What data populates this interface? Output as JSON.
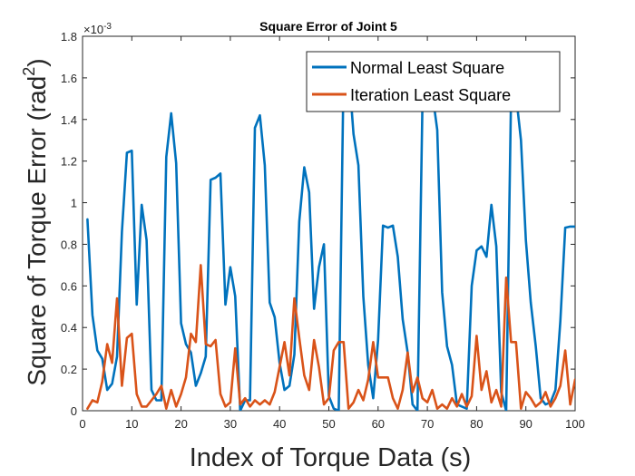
{
  "chart_data": {
    "type": "line",
    "title": "Square Error of Joint 5",
    "xlabel": "Index of Torque Data  (s)",
    "ylabel_main": "Square of Torque Error (rad",
    "ylabel_sup": "2",
    "ylabel_close": ")",
    "exponent_base": "×10",
    "exponent_power": "-3",
    "xlim": [
      0,
      100
    ],
    "ylim": [
      0,
      1.8
    ],
    "xticks": [
      0,
      10,
      20,
      30,
      40,
      50,
      60,
      70,
      80,
      90,
      100
    ],
    "yticks": [
      0,
      0.2,
      0.4,
      0.6,
      0.8,
      1,
      1.2,
      1.4,
      1.6,
      1.8
    ],
    "legend_position": "top-right",
    "series": [
      {
        "name": "Normal Least Square",
        "color": "#0072BD",
        "x": [
          1,
          2,
          3,
          4,
          5,
          6,
          7,
          8,
          9,
          10,
          11,
          12,
          13,
          14,
          15,
          16,
          17,
          18,
          19,
          20,
          21,
          22,
          23,
          24,
          25,
          26,
          27,
          28,
          29,
          30,
          31,
          32,
          33,
          34,
          35,
          36,
          37,
          38,
          39,
          40,
          41,
          42,
          43,
          44,
          45,
          46,
          47,
          48,
          49,
          50,
          51,
          52,
          53,
          54,
          55,
          56,
          57,
          58,
          59,
          60,
          61,
          62,
          63,
          64,
          65,
          66,
          67,
          68,
          69,
          70,
          71,
          72,
          73,
          74,
          75,
          76,
          77,
          78,
          79,
          80,
          81,
          82,
          83,
          84,
          85,
          86,
          87,
          88,
          89,
          90,
          91,
          92,
          93,
          94,
          95,
          96,
          97,
          98,
          99,
          100
        ],
        "values": [
          0.92,
          0.46,
          0.29,
          0.25,
          0.1,
          0.13,
          0.26,
          0.86,
          1.24,
          1.25,
          0.51,
          0.99,
          0.82,
          0.1,
          0.05,
          0.05,
          1.22,
          1.43,
          1.19,
          0.42,
          0.32,
          0.28,
          0.12,
          0.18,
          0.26,
          1.11,
          1.12,
          1.14,
          0.51,
          0.69,
          0.55,
          0.0,
          0.05,
          0.05,
          1.36,
          1.42,
          1.18,
          0.52,
          0.45,
          0.23,
          0.1,
          0.12,
          0.27,
          0.91,
          1.17,
          1.05,
          0.49,
          0.69,
          0.8,
          0.07,
          0.01,
          0.0,
          1.65,
          1.65,
          1.33,
          1.18,
          0.55,
          0.22,
          0.06,
          0.34,
          0.89,
          0.88,
          0.89,
          0.74,
          0.44,
          0.28,
          0.03,
          0.0,
          1.48,
          1.53,
          1.53,
          1.35,
          0.57,
          0.31,
          0.22,
          0.03,
          0.02,
          0.01,
          0.6,
          0.77,
          0.79,
          0.74,
          0.99,
          0.79,
          0.09,
          0.0,
          1.52,
          1.52,
          1.3,
          0.82,
          0.52,
          0.31,
          0.06,
          0.03,
          0.04,
          0.1,
          0.43,
          0.88,
          0.885,
          0.885
        ]
      },
      {
        "name": "Iteration Least Square",
        "color": "#D95319",
        "x": [
          1,
          2,
          3,
          4,
          5,
          6,
          7,
          8,
          9,
          10,
          11,
          12,
          13,
          14,
          15,
          16,
          17,
          18,
          19,
          20,
          21,
          22,
          23,
          24,
          25,
          26,
          27,
          28,
          29,
          30,
          31,
          32,
          33,
          34,
          35,
          36,
          37,
          38,
          39,
          40,
          41,
          42,
          43,
          44,
          45,
          46,
          47,
          48,
          49,
          50,
          51,
          52,
          53,
          54,
          55,
          56,
          57,
          58,
          59,
          60,
          61,
          62,
          63,
          64,
          65,
          66,
          67,
          68,
          69,
          70,
          71,
          72,
          73,
          74,
          75,
          76,
          77,
          78,
          79,
          80,
          81,
          82,
          83,
          84,
          85,
          86,
          87,
          88,
          89,
          90,
          91,
          92,
          93,
          94,
          95,
          96,
          97,
          98,
          99,
          100
        ],
        "values": [
          0.01,
          0.05,
          0.04,
          0.14,
          0.32,
          0.23,
          0.54,
          0.12,
          0.35,
          0.37,
          0.08,
          0.02,
          0.02,
          0.05,
          0.08,
          0.12,
          0.01,
          0.1,
          0.02,
          0.08,
          0.16,
          0.37,
          0.33,
          0.7,
          0.32,
          0.31,
          0.34,
          0.08,
          0.02,
          0.04,
          0.3,
          0.03,
          0.06,
          0.02,
          0.05,
          0.03,
          0.05,
          0.03,
          0.09,
          0.21,
          0.33,
          0.17,
          0.54,
          0.35,
          0.17,
          0.1,
          0.34,
          0.21,
          0.03,
          0.06,
          0.29,
          0.33,
          0.33,
          0.01,
          0.04,
          0.1,
          0.05,
          0.15,
          0.33,
          0.16,
          0.16,
          0.16,
          0.06,
          0.01,
          0.1,
          0.28,
          0.09,
          0.16,
          0.06,
          0.04,
          0.1,
          0.01,
          0.03,
          0.01,
          0.06,
          0.02,
          0.08,
          0.02,
          0.07,
          0.36,
          0.1,
          0.19,
          0.04,
          0.1,
          0.02,
          0.64,
          0.33,
          0.33,
          0.01,
          0.09,
          0.06,
          0.02,
          0.04,
          0.09,
          0.02,
          0.06,
          0.12,
          0.29,
          0.03,
          0.15
        ]
      }
    ]
  }
}
